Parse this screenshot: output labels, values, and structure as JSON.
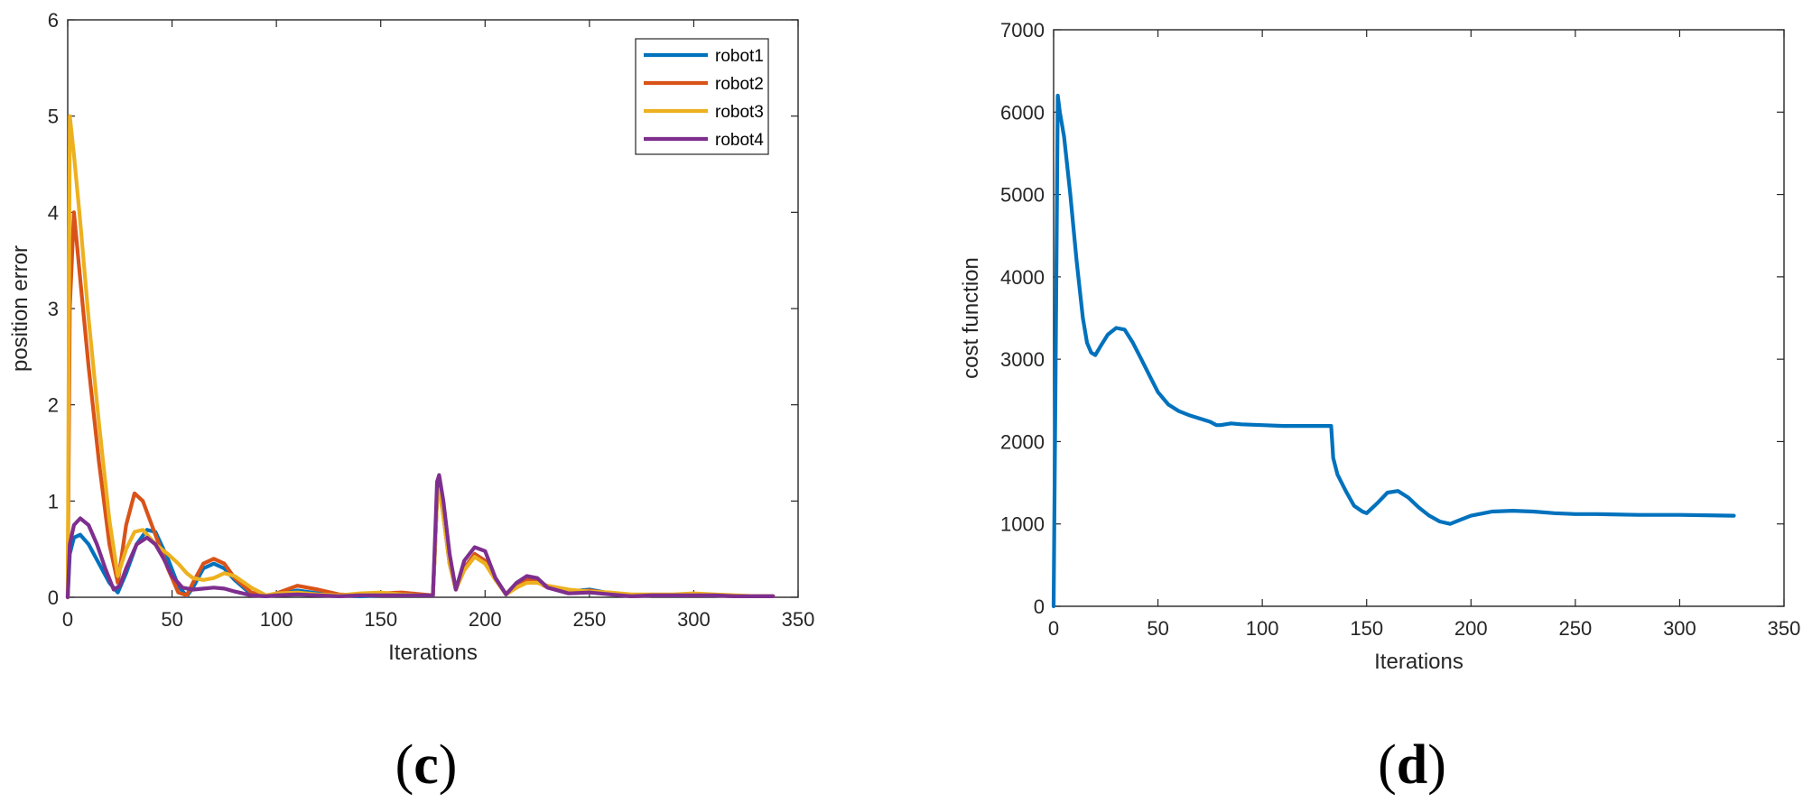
{
  "chart_data": [
    {
      "type": "line",
      "panel_label": "(c)",
      "xlabel": "Iterations",
      "ylabel": "position error",
      "xlim": [
        0,
        350
      ],
      "ylim": [
        0,
        6
      ],
      "xticks": [
        0,
        50,
        100,
        150,
        200,
        250,
        300,
        350
      ],
      "yticks": [
        0,
        1,
        2,
        3,
        4,
        5,
        6
      ],
      "grid": false,
      "legend": "top-right",
      "series": [
        {
          "name": "robot1",
          "color": "#0072BD",
          "x": [
            0,
            1,
            3,
            6,
            10,
            15,
            20,
            24,
            28,
            33,
            38,
            42,
            48,
            53,
            57,
            60,
            65,
            70,
            75,
            80,
            88,
            95,
            100,
            110,
            120,
            130,
            140,
            150,
            160,
            170,
            175,
            176,
            177,
            178,
            180,
            183,
            186,
            190,
            195,
            200,
            205,
            210,
            215,
            220,
            225,
            230,
            240,
            250,
            260,
            270,
            280,
            290,
            300,
            310,
            320,
            330,
            338
          ],
          "y": [
            0,
            0.45,
            0.62,
            0.65,
            0.55,
            0.35,
            0.15,
            0.05,
            0.25,
            0.55,
            0.7,
            0.68,
            0.4,
            0.12,
            0.01,
            0.1,
            0.3,
            0.35,
            0.3,
            0.18,
            0.03,
            0.01,
            0.03,
            0.07,
            0.04,
            0.02,
            0.01,
            0.02,
            0.03,
            0.02,
            0.02,
            0.5,
            1.05,
            1.15,
            0.85,
            0.35,
            0.08,
            0.3,
            0.45,
            0.38,
            0.2,
            0.03,
            0.12,
            0.2,
            0.18,
            0.1,
            0.06,
            0.08,
            0.04,
            0.01,
            0.02,
            0.02,
            0.03,
            0.02,
            0.01,
            0.01,
            0.01
          ]
        },
        {
          "name": "robot2",
          "color": "#D95319",
          "x": [
            0,
            1,
            3,
            6,
            10,
            15,
            20,
            24,
            28,
            32,
            36,
            42,
            48,
            53,
            57,
            60,
            65,
            70,
            75,
            80,
            88,
            95,
            100,
            110,
            120,
            130,
            140,
            150,
            160,
            170,
            175,
            176,
            177,
            178,
            180,
            183,
            186,
            190,
            195,
            200,
            205,
            210,
            215,
            220,
            225,
            230,
            240,
            250,
            260,
            270,
            280,
            290,
            300,
            310,
            320,
            330,
            338
          ],
          "y": [
            0,
            3.0,
            4.0,
            3.3,
            2.4,
            1.4,
            0.55,
            0.15,
            0.75,
            1.08,
            1.0,
            0.65,
            0.3,
            0.05,
            0.02,
            0.15,
            0.35,
            0.4,
            0.35,
            0.2,
            0.05,
            0.01,
            0.04,
            0.12,
            0.08,
            0.03,
            0.02,
            0.04,
            0.05,
            0.03,
            0.02,
            0.5,
            1.05,
            1.12,
            0.85,
            0.35,
            0.08,
            0.3,
            0.45,
            0.38,
            0.2,
            0.03,
            0.1,
            0.18,
            0.16,
            0.1,
            0.06,
            0.07,
            0.04,
            0.01,
            0.02,
            0.02,
            0.03,
            0.02,
            0.01,
            0.01,
            0.01
          ]
        },
        {
          "name": "robot3",
          "color": "#EDB120",
          "x": [
            0,
            1,
            3,
            6,
            10,
            15,
            20,
            24,
            28,
            32,
            36,
            42,
            48,
            53,
            57,
            60,
            65,
            70,
            75,
            80,
            88,
            95,
            100,
            110,
            120,
            130,
            140,
            150,
            160,
            170,
            175,
            176,
            177,
            178,
            180,
            183,
            186,
            190,
            195,
            200,
            205,
            210,
            215,
            220,
            225,
            230,
            240,
            250,
            260,
            270,
            280,
            290,
            300,
            310,
            320,
            330,
            338
          ],
          "y": [
            0,
            5.0,
            4.6,
            3.9,
            2.9,
            1.8,
            0.8,
            0.22,
            0.5,
            0.68,
            0.7,
            0.55,
            0.45,
            0.35,
            0.25,
            0.2,
            0.18,
            0.2,
            0.25,
            0.22,
            0.1,
            0.02,
            0.04,
            0.05,
            0.03,
            0.02,
            0.04,
            0.05,
            0.03,
            0.02,
            0.02,
            0.5,
            1.05,
            1.12,
            0.85,
            0.35,
            0.08,
            0.28,
            0.42,
            0.35,
            0.18,
            0.03,
            0.1,
            0.15,
            0.15,
            0.12,
            0.08,
            0.06,
            0.05,
            0.03,
            0.03,
            0.03,
            0.04,
            0.03,
            0.02,
            0.01,
            0.01
          ]
        },
        {
          "name": "robot4",
          "color": "#7E2F8E",
          "x": [
            0,
            1,
            3,
            6,
            10,
            14,
            18,
            22,
            25,
            28,
            33,
            38,
            42,
            46,
            50,
            55,
            60,
            65,
            70,
            75,
            80,
            88,
            95,
            100,
            110,
            120,
            130,
            140,
            150,
            160,
            170,
            175,
            176,
            177,
            178,
            180,
            183,
            186,
            190,
            195,
            200,
            205,
            210,
            215,
            220,
            225,
            230,
            240,
            250,
            260,
            270,
            280,
            290,
            300,
            310,
            320,
            330,
            338
          ],
          "y": [
            0,
            0.55,
            0.75,
            0.82,
            0.75,
            0.55,
            0.3,
            0.08,
            0.12,
            0.3,
            0.55,
            0.62,
            0.55,
            0.4,
            0.22,
            0.1,
            0.08,
            0.09,
            0.1,
            0.09,
            0.06,
            0.02,
            0.01,
            0.02,
            0.03,
            0.02,
            0.01,
            0.02,
            0.02,
            0.02,
            0.02,
            0.02,
            0.6,
            1.2,
            1.27,
            1.0,
            0.45,
            0.08,
            0.38,
            0.52,
            0.48,
            0.2,
            0.03,
            0.15,
            0.22,
            0.2,
            0.1,
            0.04,
            0.05,
            0.03,
            0.01,
            0.02,
            0.02,
            0.02,
            0.02,
            0.01,
            0.01,
            0.01
          ]
        }
      ]
    },
    {
      "type": "line",
      "panel_label": "(d)",
      "xlabel": "Iterations",
      "ylabel": "cost function",
      "xlim": [
        0,
        350
      ],
      "ylim": [
        0,
        7000
      ],
      "xticks": [
        0,
        50,
        100,
        150,
        200,
        250,
        300,
        350
      ],
      "yticks": [
        0,
        1000,
        2000,
        3000,
        4000,
        5000,
        6000,
        7000
      ],
      "grid": false,
      "series": [
        {
          "color": "#0072BD",
          "x": [
            0,
            1,
            2,
            3,
            5,
            8,
            11,
            14,
            16,
            18,
            20,
            23,
            26,
            30,
            34,
            38,
            42,
            46,
            50,
            55,
            60,
            65,
            70,
            75,
            78,
            80,
            85,
            90,
            100,
            110,
            120,
            130,
            133,
            134,
            136,
            140,
            144,
            148,
            150,
            155,
            160,
            165,
            170,
            175,
            180,
            185,
            190,
            195,
            200,
            210,
            220,
            230,
            240,
            250,
            260,
            280,
            300,
            326
          ],
          "y": [
            0,
            3000,
            6200,
            6000,
            5700,
            5000,
            4200,
            3500,
            3200,
            3080,
            3050,
            3180,
            3300,
            3380,
            3360,
            3200,
            3000,
            2800,
            2600,
            2450,
            2370,
            2320,
            2280,
            2240,
            2200,
            2200,
            2220,
            2210,
            2200,
            2190,
            2190,
            2190,
            2190,
            1800,
            1600,
            1400,
            1220,
            1150,
            1130,
            1250,
            1380,
            1400,
            1320,
            1200,
            1100,
            1030,
            1000,
            1050,
            1100,
            1150,
            1160,
            1150,
            1130,
            1120,
            1120,
            1110,
            1110,
            1100
          ]
        }
      ]
    }
  ]
}
